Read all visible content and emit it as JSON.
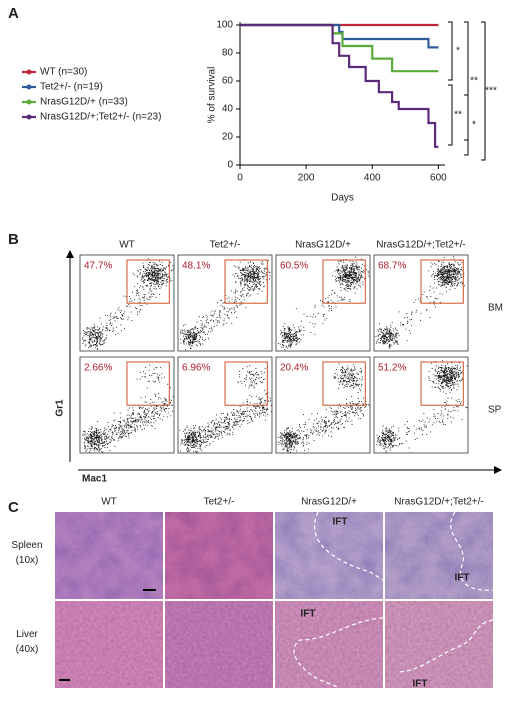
{
  "panel_labels": [
    "A",
    "B",
    "C"
  ],
  "chart_data": {
    "type": "line",
    "step": true,
    "ylabel": "% of survival",
    "xlabel": "Days",
    "xlim": [
      0,
      620
    ],
    "ylim": [
      0,
      100
    ],
    "xticks": [
      0,
      200,
      400,
      600
    ],
    "yticks": [
      0,
      20,
      40,
      60,
      80,
      100
    ],
    "series": [
      {
        "name": "WT (n=30)",
        "color": "#c0243a",
        "x": [
          0,
          600
        ],
        "values": [
          100,
          100
        ]
      },
      {
        "name": "Tet2+/- (n=19)",
        "color": "#2e5b9a",
        "x": [
          0,
          300,
          310,
          570,
          600
        ],
        "values": [
          100,
          95,
          90,
          84,
          84
        ]
      },
      {
        "name": "NrasG12D/+ (n=33)",
        "color": "#5aaa3c",
        "x": [
          0,
          280,
          310,
          400,
          460,
          600
        ],
        "values": [
          100,
          94,
          85,
          76,
          67,
          67
        ]
      },
      {
        "name": "NrasG12D/+;Tet2+/- (n=23)",
        "color": "#5b2a7a",
        "x": [
          0,
          270,
          280,
          300,
          330,
          380,
          420,
          460,
          480,
          560,
          570,
          590,
          600
        ],
        "values": [
          100,
          100,
          87,
          78,
          70,
          60,
          52,
          45,
          40,
          40,
          30,
          13,
          13
        ]
      }
    ],
    "annotations": [
      "*",
      "**",
      "**",
      "*",
      "***"
    ]
  },
  "flow": {
    "columns": [
      "WT",
      "Tet2+/-",
      "NrasG12D/+",
      "NrasG12D/+;Tet2+/-"
    ],
    "rows": [
      "BM",
      "SP"
    ],
    "percentages": [
      [
        "47.7%",
        "48.1%",
        "60.5%",
        "68.7%"
      ],
      [
        "2.66%",
        "6.96%",
        "20.4%",
        "51.2%"
      ]
    ],
    "y_axis": "Gr1",
    "x_axis": "Mac1"
  },
  "histology": {
    "columns": [
      "WT",
      "Tet2+/-",
      "NrasG12D/+",
      "NrasG12D/+;Tet2+/-"
    ],
    "rows": [
      [
        "Spleen",
        "(10x)"
      ],
      [
        "Liver",
        "(40x)"
      ]
    ],
    "labels": [
      "IFT",
      "IFT",
      "IFT",
      "IFT"
    ]
  }
}
